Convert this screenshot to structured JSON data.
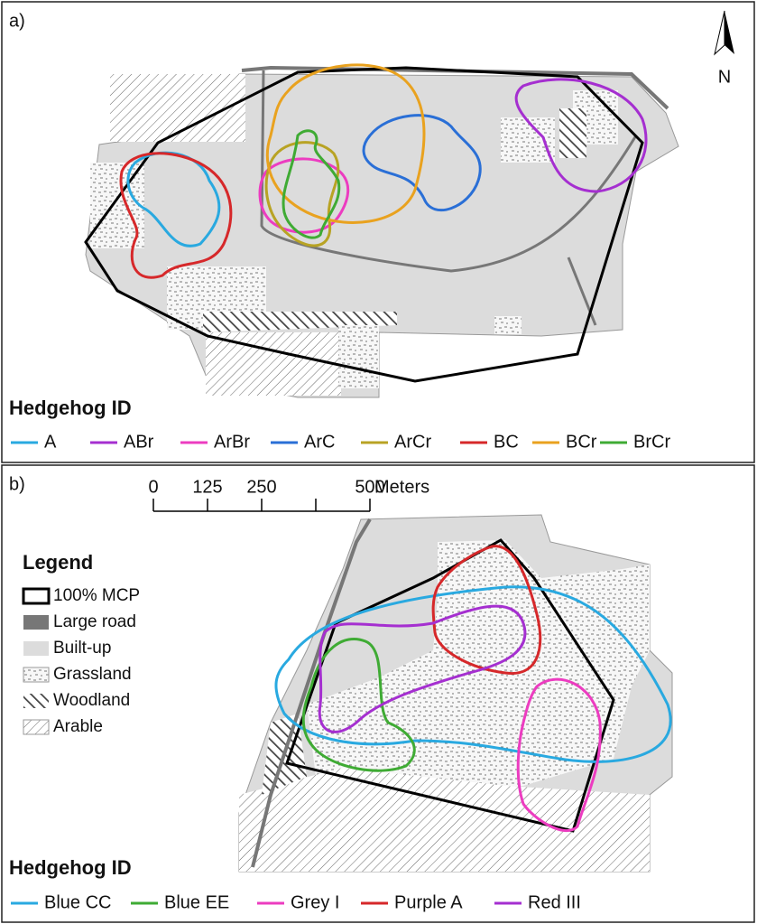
{
  "panel_a": {
    "label": "a)",
    "north": "N",
    "ids_title": "Hedgehog ID",
    "ids": [
      {
        "name": "A",
        "color": "#29a9e0"
      },
      {
        "name": "ABr",
        "color": "#a52fd0"
      },
      {
        "name": "ArBr",
        "color": "#ec3cc0"
      },
      {
        "name": "ArC",
        "color": "#2a6fd6"
      },
      {
        "name": "ArCr",
        "color": "#b8a324"
      },
      {
        "name": "BC",
        "color": "#d6282a"
      },
      {
        "name": "BCr",
        "color": "#e9a21f"
      },
      {
        "name": "BrCr",
        "color": "#3fab34"
      }
    ]
  },
  "panel_b": {
    "label": "b)",
    "scale_bar": {
      "ticks": [
        0,
        125,
        250,
        500
      ],
      "unit": "Meters"
    },
    "legend": {
      "title": "Legend",
      "items": [
        "100% MCP",
        "Large road",
        "Built-up",
        "Grassland",
        "Woodland",
        "Arable"
      ]
    },
    "ids_title": "Hedgehog ID",
    "ids": [
      {
        "name": "Blue CC",
        "color": "#29a9e0"
      },
      {
        "name": "Blue EE",
        "color": "#3fab34"
      },
      {
        "name": "Grey I",
        "color": "#ec3cc0"
      },
      {
        "name": "Purple A",
        "color": "#d6282a"
      },
      {
        "name": "Red III",
        "color": "#a52fd0"
      }
    ]
  }
}
